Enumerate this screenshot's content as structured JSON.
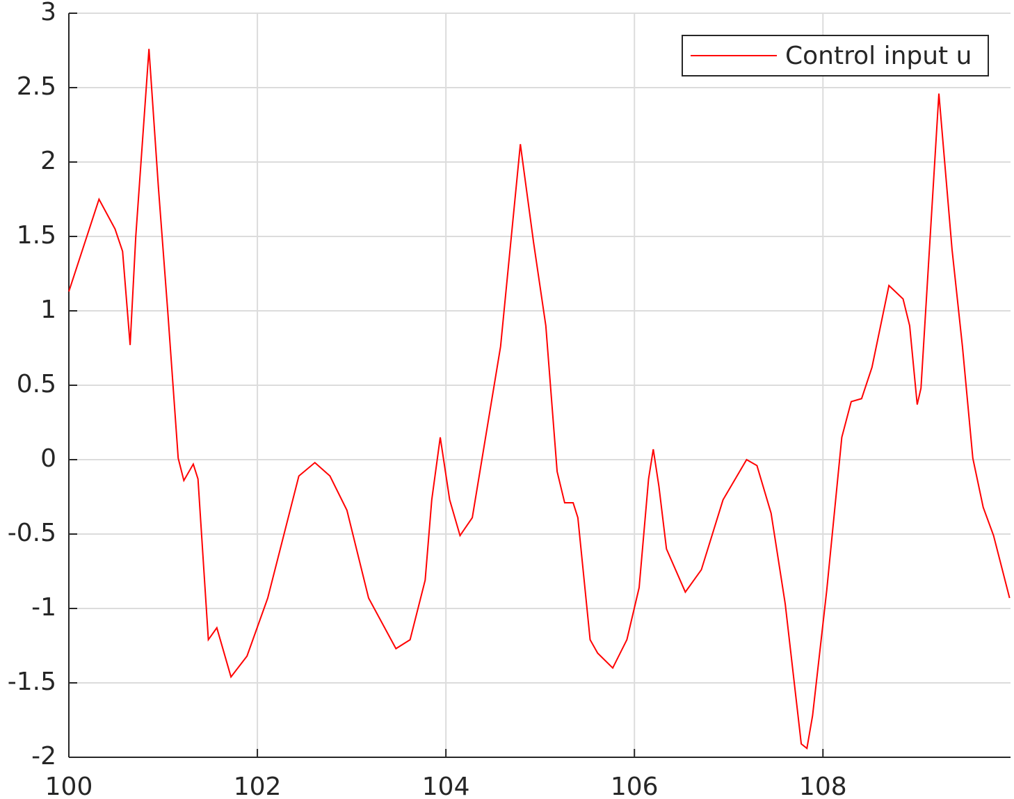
{
  "chart_data": {
    "type": "line",
    "x": [
      100,
      100.32,
      100.49,
      100.57,
      100.65,
      100.71,
      100.85,
      100.95,
      101.05,
      101.16,
      101.22,
      101.32,
      101.37,
      101.48,
      101.57,
      101.72,
      101.89,
      102.11,
      102.44,
      102.61,
      102.77,
      102.95,
      103.18,
      103.47,
      103.62,
      103.78,
      103.85,
      103.94,
      104.04,
      104.15,
      104.28,
      104.58,
      104.79,
      104.93,
      105.06,
      105.18,
      105.26,
      105.35,
      105.4,
      105.53,
      105.61,
      105.77,
      105.92,
      106.05,
      106.15,
      106.2,
      106.26,
      106.34,
      106.54,
      106.71,
      106.94,
      107.19,
      107.3,
      107.45,
      107.6,
      107.77,
      107.83,
      107.89,
      108.04,
      108.2,
      108.3,
      108.41,
      108.52,
      108.7,
      108.85,
      108.92,
      109,
      109.04,
      109.23,
      109.37,
      109.48,
      109.59,
      109.7,
      109.81,
      109.98
    ],
    "series": [
      {
        "name": "Control input u",
        "color": "#ff0000",
        "values": [
          1.13,
          1.75,
          1.55,
          1.4,
          0.77,
          1.5,
          2.76,
          1.83,
          0.99,
          0.01,
          -0.14,
          -0.03,
          -0.13,
          -1.21,
          -1.13,
          -1.46,
          -1.32,
          -0.93,
          -0.11,
          -0.02,
          -0.11,
          -0.34,
          -0.93,
          -1.27,
          -1.21,
          -0.81,
          -0.27,
          0.15,
          -0.27,
          -0.51,
          -0.39,
          0.76,
          2.12,
          1.46,
          0.9,
          -0.08,
          -0.29,
          -0.29,
          -0.39,
          -1.21,
          -1.3,
          -1.4,
          -1.21,
          -0.86,
          -0.13,
          0.07,
          -0.18,
          -0.6,
          -0.89,
          -0.74,
          -0.27,
          0,
          -0.04,
          -0.36,
          -0.97,
          -1.91,
          -1.94,
          -1.72,
          -0.88,
          0.15,
          0.39,
          0.41,
          0.62,
          1.17,
          1.08,
          0.9,
          0.37,
          0.48,
          2.46,
          1.41,
          0.76,
          0.01,
          -0.32,
          -0.51,
          -0.93
        ]
      }
    ],
    "xlim": [
      100,
      109.99
    ],
    "xticks": [
      100,
      102,
      104,
      106,
      108
    ],
    "ylim": [
      -2,
      3
    ],
    "yticks": [
      -2,
      -1.5,
      -1,
      -0.5,
      0,
      0.5,
      1,
      1.5,
      2,
      2.5,
      3
    ],
    "grid": true,
    "legend": "northeast"
  }
}
